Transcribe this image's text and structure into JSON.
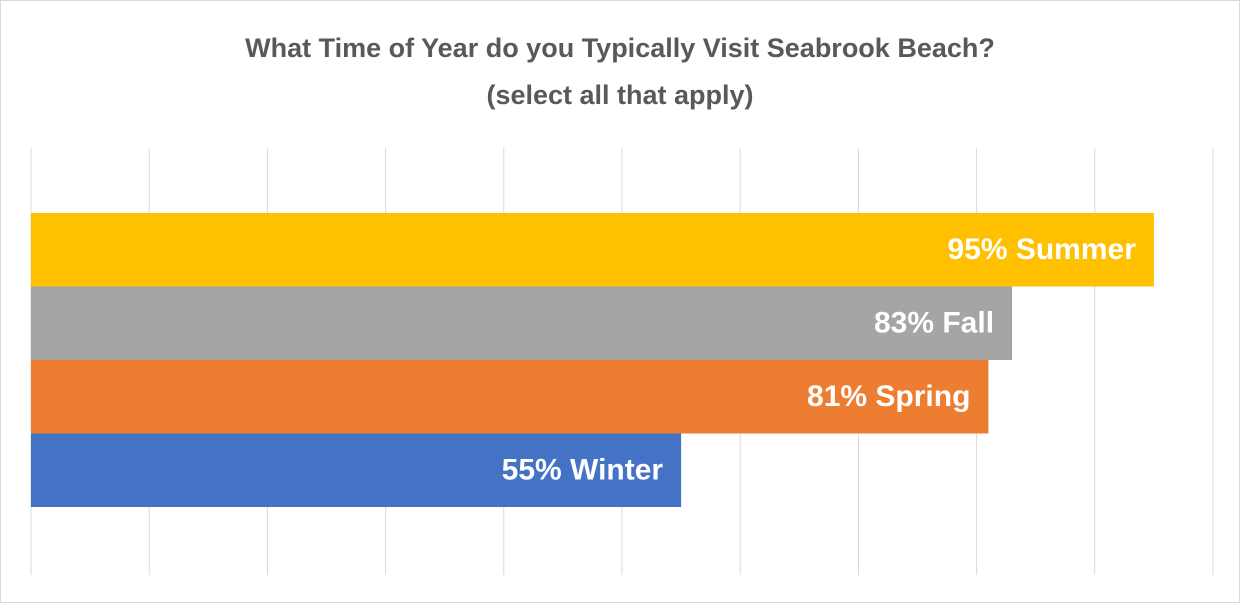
{
  "chart_data": {
    "type": "bar",
    "orientation": "horizontal",
    "title": "What Time of Year do you Typically Visit Seabrook Beach?",
    "subtitle": "(select all that apply)",
    "categories": [
      "Summer",
      "Fall",
      "Spring",
      "Winter"
    ],
    "values": [
      95,
      83,
      81,
      55
    ],
    "value_labels": [
      "95%",
      "83%",
      "81%",
      "55%"
    ],
    "colors": [
      "#ffc000",
      "#a5a5a5",
      "#ed7d31",
      "#4472c4"
    ],
    "xlim": [
      0,
      100
    ],
    "xticks": [
      0,
      10,
      20,
      30,
      40,
      50,
      60,
      70,
      80,
      90,
      100
    ],
    "grid": true
  }
}
